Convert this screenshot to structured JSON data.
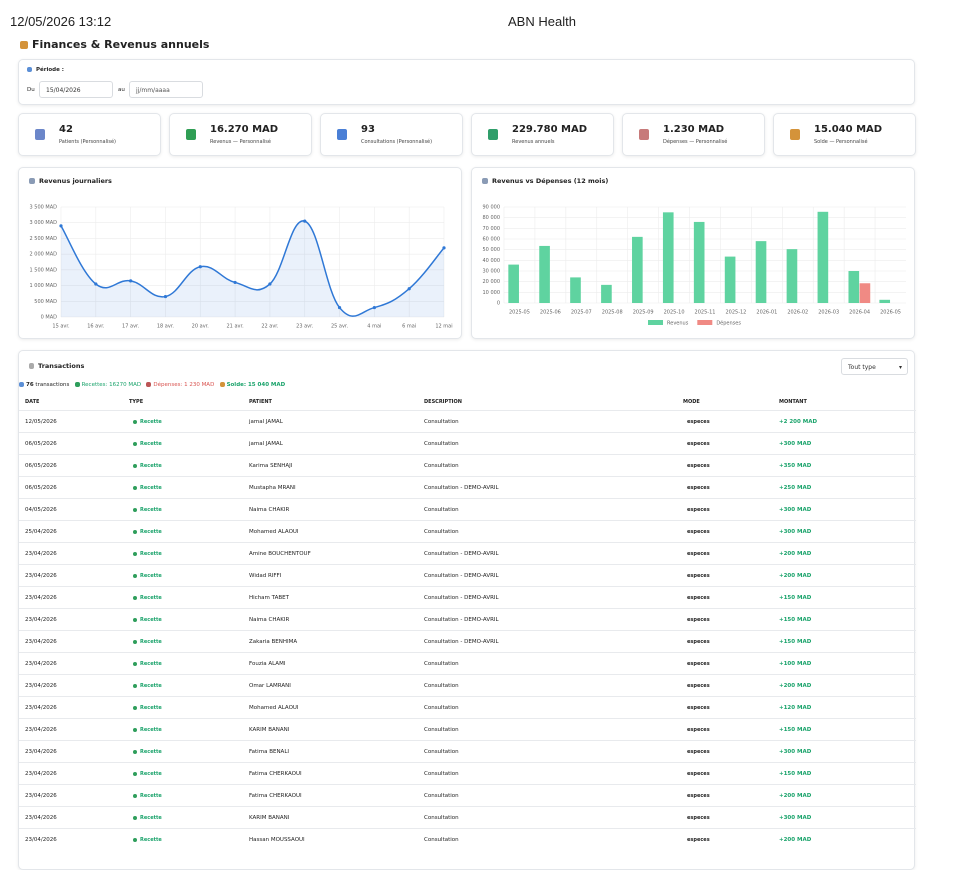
{
  "header": {
    "datetime": "12/05/2026 13:12",
    "app": "ABN Health"
  },
  "page_title": "Finances & Revenus annuels",
  "period": {
    "label": "Période :",
    "from_label": "Du",
    "from_value": "15/04/2026",
    "to_label": "au",
    "to_placeholder": "jj/mm/aaaa"
  },
  "kpis": [
    {
      "value": "42",
      "label": "Patients (Personnalisé)"
    },
    {
      "value": "16.270 MAD",
      "label": "Revenus — Personnalisé"
    },
    {
      "value": "93",
      "label": "Consultations (Personnalisé)"
    },
    {
      "value": "229.780 MAD",
      "label": "Revenus annuels"
    },
    {
      "value": "1.230 MAD",
      "label": "Dépenses — Personnalisé"
    },
    {
      "value": "15.040 MAD",
      "label": "Solde — Personnalisé"
    }
  ],
  "chart_data": [
    {
      "type": "line",
      "title": "Revenus journaliers",
      "color": "#2f78d6",
      "grid": true,
      "categories": [
        "15 avr.",
        "16 avr.",
        "17 avr.",
        "18 avr.",
        "20 avr.",
        "21 avr.",
        "22 avr.",
        "23 avr.",
        "25 avr.",
        "4 mai",
        "6 mai",
        "12 mai"
      ],
      "values": [
        2900,
        1050,
        1150,
        650,
        1600,
        1100,
        1050,
        3050,
        300,
        300,
        900,
        2200
      ],
      "ylim": [
        0,
        3500
      ],
      "yticks": [
        {
          "value": 0,
          "label": "0 MAD"
        },
        {
          "value": 500,
          "label": "500 MAD"
        },
        {
          "value": 1000,
          "label": "1 000 MAD"
        },
        {
          "value": 1500,
          "label": "1 500 MAD"
        },
        {
          "value": 2000,
          "label": "2 000 MAD"
        },
        {
          "value": 2500,
          "label": "2 500 MAD"
        },
        {
          "value": 3000,
          "label": "3 000 MAD"
        },
        {
          "value": 3500,
          "label": "3 500 MAD"
        }
      ]
    },
    {
      "type": "bar",
      "title": "Revenus vs Dépenses (12 mois)",
      "grid": true,
      "categories": [
        "2025-05",
        "2025-06",
        "2025-07",
        "2025-08",
        "2025-09",
        "2025-10",
        "2025-11",
        "2025-12",
        "2026-01",
        "2026-02",
        "2026-03",
        "2026-04",
        "2026-05"
      ],
      "series": [
        {
          "name": "Revenus",
          "color": "#5fd3a0",
          "values": [
            36000,
            53500,
            24000,
            17000,
            62000,
            85000,
            76000,
            43500,
            58000,
            50500,
            85500,
            30000,
            3000
          ]
        },
        {
          "name": "Dépenses",
          "color": "#f08a84",
          "values": [
            0,
            0,
            0,
            0,
            0,
            0,
            0,
            0,
            0,
            0,
            0,
            18500,
            0
          ]
        }
      ],
      "ylim": [
        0,
        90000
      ],
      "yticks": [
        0,
        {
          "value": 10000,
          "label": "10 000"
        },
        {
          "value": 20000,
          "label": "20 000"
        },
        {
          "value": 30000,
          "label": "30 000"
        },
        {
          "value": 40000,
          "label": "40 000"
        },
        {
          "value": 50000,
          "label": "50 000"
        },
        {
          "value": 60000,
          "label": "60 000"
        },
        {
          "value": 70000,
          "label": "70 000"
        },
        {
          "value": 80000,
          "label": "80 000"
        },
        {
          "value": 90000,
          "label": "90 000"
        }
      ],
      "legend": "bottom"
    }
  ],
  "transactions": {
    "title": "Transactions",
    "filter": "Tout type",
    "summary": {
      "count": "76",
      "count_label": "transactions",
      "recettes": "Recettes: 16270 MAD",
      "depenses": "Dépenses: 1 230 MAD",
      "solde": "Solde: 15 040 MAD"
    },
    "columns": [
      "DATE",
      "TYPE",
      "PATIENT",
      "DESCRIPTION",
      "MODE",
      "MONTANT"
    ],
    "rows": [
      [
        "12/05/2026",
        "Recette",
        "jamal JAMAL",
        "Consultation",
        "especes",
        "+2 200 MAD"
      ],
      [
        "06/05/2026",
        "Recette",
        "jamal JAMAL",
        "Consultation",
        "especes",
        "+300 MAD"
      ],
      [
        "06/05/2026",
        "Recette",
        "Karima SENHAJI",
        "Consultation",
        "especes",
        "+350 MAD"
      ],
      [
        "06/05/2026",
        "Recette",
        "Mustapha MRANI",
        "Consultation - DEMO-AVRIL",
        "especes",
        "+250 MAD"
      ],
      [
        "04/05/2026",
        "Recette",
        "Naima CHAKIR",
        "Consultation",
        "especes",
        "+300 MAD"
      ],
      [
        "25/04/2026",
        "Recette",
        "Mohamed ALAOUI",
        "Consultation",
        "especes",
        "+300 MAD"
      ],
      [
        "23/04/2026",
        "Recette",
        "Amine BOUCHENTOUF",
        "Consultation - DEMO-AVRIL",
        "especes",
        "+200 MAD"
      ],
      [
        "23/04/2026",
        "Recette",
        "Widad RIFFI",
        "Consultation - DEMO-AVRIL",
        "especes",
        "+200 MAD"
      ],
      [
        "23/04/2026",
        "Recette",
        "Hicham TABET",
        "Consultation - DEMO-AVRIL",
        "especes",
        "+150 MAD"
      ],
      [
        "23/04/2026",
        "Recette",
        "Naima CHAKIR",
        "Consultation - DEMO-AVRIL",
        "especes",
        "+150 MAD"
      ],
      [
        "23/04/2026",
        "Recette",
        "Zakaria BENHIMA",
        "Consultation - DEMO-AVRIL",
        "especes",
        "+150 MAD"
      ],
      [
        "23/04/2026",
        "Recette",
        "Fouzia ALAMI",
        "Consultation",
        "especes",
        "+100 MAD"
      ],
      [
        "23/04/2026",
        "Recette",
        "Omar LAMRANI",
        "Consultation",
        "especes",
        "+200 MAD"
      ],
      [
        "23/04/2026",
        "Recette",
        "Mohamed ALAOUI",
        "Consultation",
        "especes",
        "+120 MAD"
      ],
      [
        "23/04/2026",
        "Recette",
        "KARIM BANANI",
        "Consultation",
        "especes",
        "+150 MAD"
      ],
      [
        "23/04/2026",
        "Recette",
        "Fatima BENALI",
        "Consultation",
        "especes",
        "+300 MAD"
      ],
      [
        "23/04/2026",
        "Recette",
        "Fatima CHERKAOUI",
        "Consultation",
        "especes",
        "+150 MAD"
      ],
      [
        "23/04/2026",
        "Recette",
        "Fatima CHERKAOUI",
        "Consultation",
        "especes",
        "+200 MAD"
      ],
      [
        "23/04/2026",
        "Recette",
        "KARIM BANANI",
        "Consultation",
        "especes",
        "+300 MAD"
      ],
      [
        "23/04/2026",
        "Recette",
        "Hassan MOUSSAOUI",
        "Consultation",
        "especes",
        "+200 MAD"
      ]
    ]
  }
}
